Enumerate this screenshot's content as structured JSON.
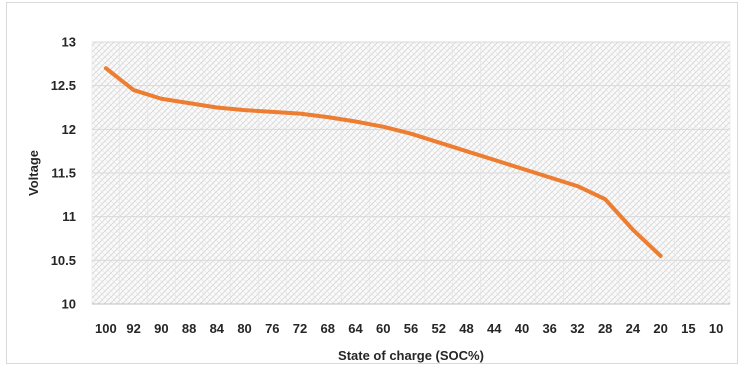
{
  "chart_data": {
    "type": "line",
    "title": "",
    "xlabel": "State of charge (SOC%)",
    "ylabel": "Voltage",
    "categories": [
      "100",
      "92",
      "90",
      "88",
      "84",
      "80",
      "76",
      "72",
      "68",
      "64",
      "60",
      "56",
      "52",
      "48",
      "44",
      "40",
      "36",
      "32",
      "28",
      "24",
      "20",
      "15",
      "10"
    ],
    "y_ticks": [
      "10",
      "10.5",
      "11",
      "11.5",
      "12",
      "12.5",
      "13"
    ],
    "ylim": [
      10,
      13
    ],
    "series": [
      {
        "values": [
          12.7,
          12.45,
          12.35,
          12.3,
          12.25,
          12.22,
          12.2,
          12.18,
          12.14,
          12.09,
          12.03,
          11.95,
          11.85,
          11.75,
          11.65,
          11.55,
          11.45,
          11.35,
          11.2,
          10.85,
          10.55,
          null,
          null
        ],
        "color": "#ed7d31"
      }
    ],
    "grid": true,
    "plot_background": "hatched light grey",
    "legend": "none"
  }
}
